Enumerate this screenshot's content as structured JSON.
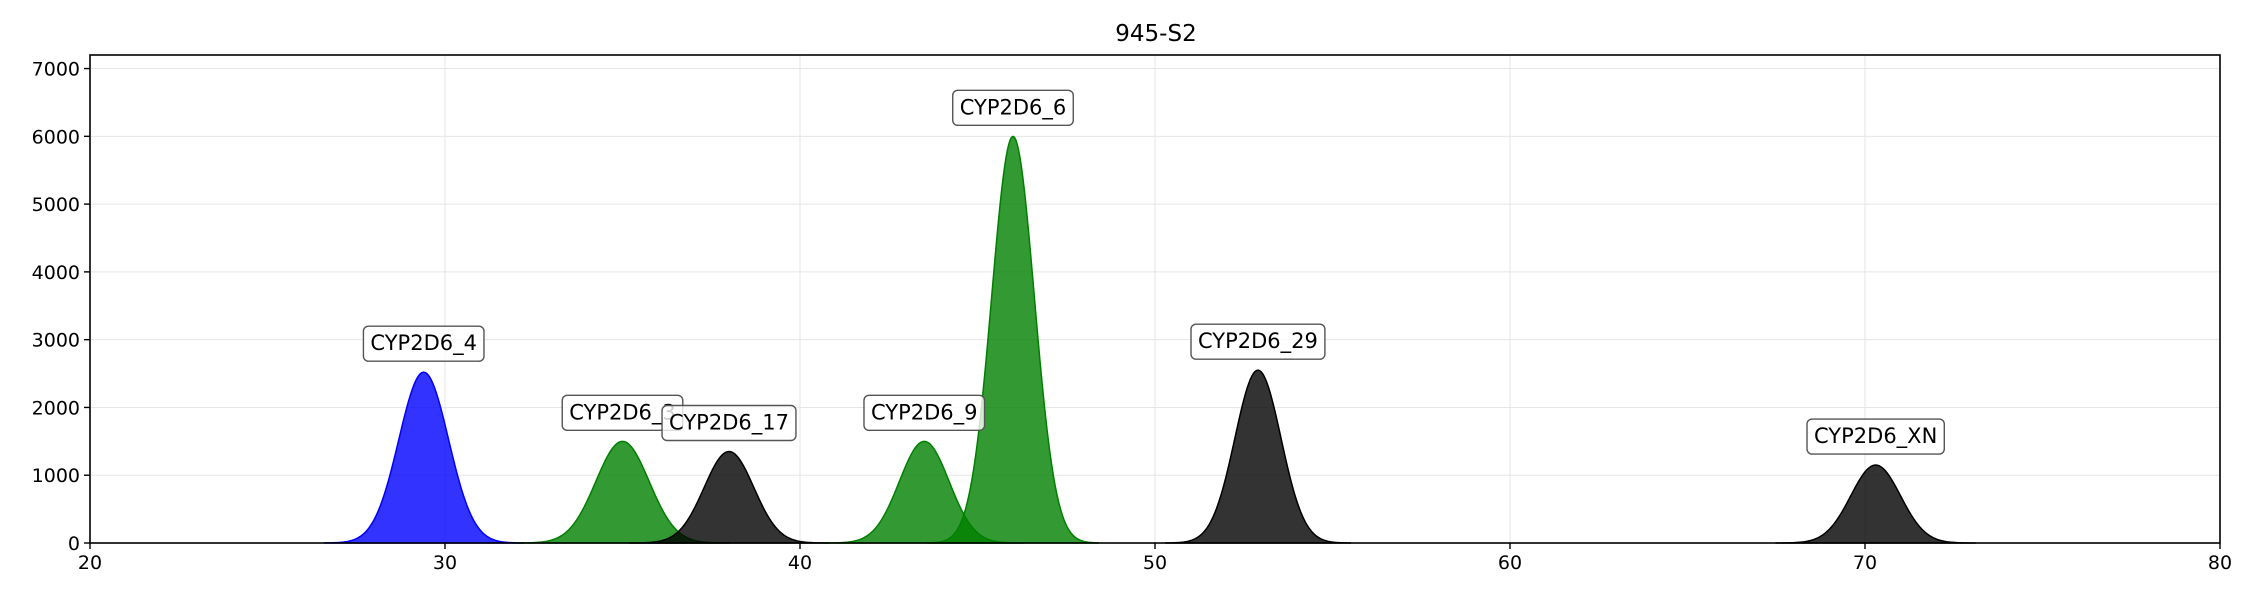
{
  "chart_data": {
    "type": "area",
    "title": "945-S2",
    "xlabel": "",
    "ylabel": "",
    "xlim": [
      20,
      80
    ],
    "ylim": [
      0,
      7200
    ],
    "x_ticks": [
      20,
      30,
      40,
      50,
      60,
      70,
      80
    ],
    "y_ticks": [
      0,
      1000,
      2000,
      3000,
      4000,
      5000,
      6000,
      7000
    ],
    "grid": true,
    "peaks": [
      {
        "label": "CYP2D6_4",
        "center": 29.4,
        "height": 2520,
        "sigma": 0.7,
        "color": "#0000ff"
      },
      {
        "label": "CYP2D6_3",
        "center": 35.0,
        "height": 1500,
        "sigma": 0.75,
        "color": "#008000"
      },
      {
        "label": "CYP2D6_17",
        "center": 38.0,
        "height": 1350,
        "sigma": 0.7,
        "color": "#000000"
      },
      {
        "label": "CYP2D6_9",
        "center": 43.5,
        "height": 1500,
        "sigma": 0.7,
        "color": "#008000"
      },
      {
        "label": "CYP2D6_6",
        "center": 46.0,
        "height": 6000,
        "sigma": 0.6,
        "color": "#008000"
      },
      {
        "label": "CYP2D6_29",
        "center": 52.9,
        "height": 2550,
        "sigma": 0.65,
        "color": "#000000"
      },
      {
        "label": "CYP2D6_XN",
        "center": 70.3,
        "height": 1150,
        "sigma": 0.7,
        "color": "#000000"
      }
    ]
  }
}
